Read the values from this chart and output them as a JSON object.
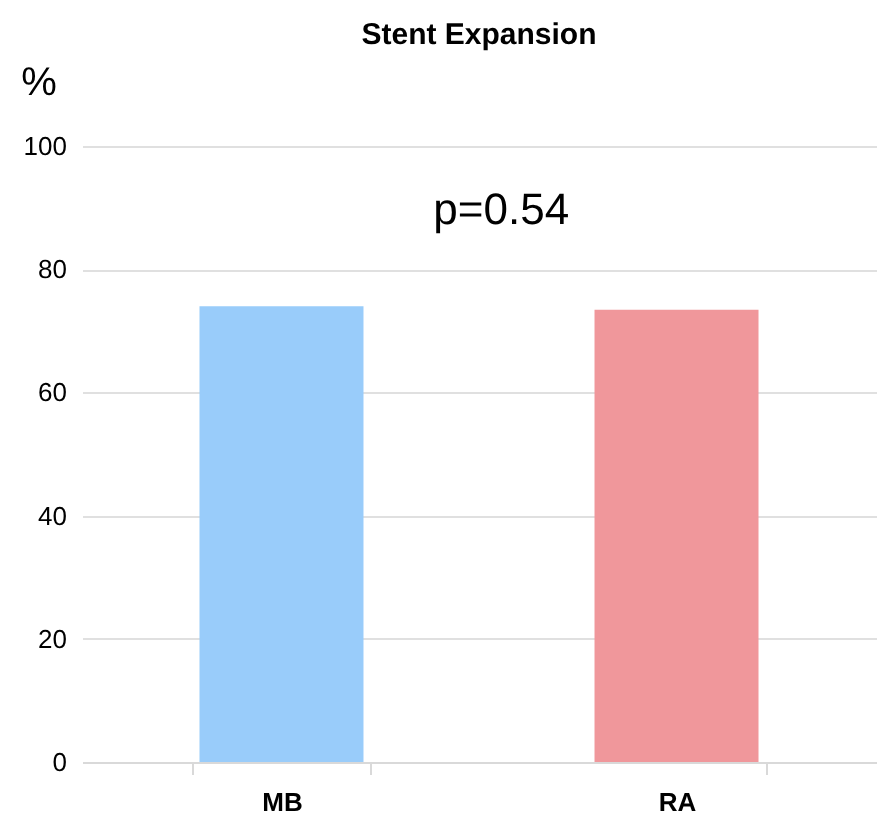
{
  "chart_data": {
    "type": "bar",
    "title": "Stent Expansion",
    "ylabel": "%",
    "categories": [
      "MB",
      "RA"
    ],
    "values": [
      74,
      73.4
    ],
    "colors": [
      "#99ccfa",
      "#f0979b"
    ],
    "ylim": [
      0,
      100
    ],
    "yticks": [
      0,
      20,
      40,
      60,
      80,
      100
    ],
    "grid": "y",
    "annotations": [
      "p=0.54"
    ]
  }
}
